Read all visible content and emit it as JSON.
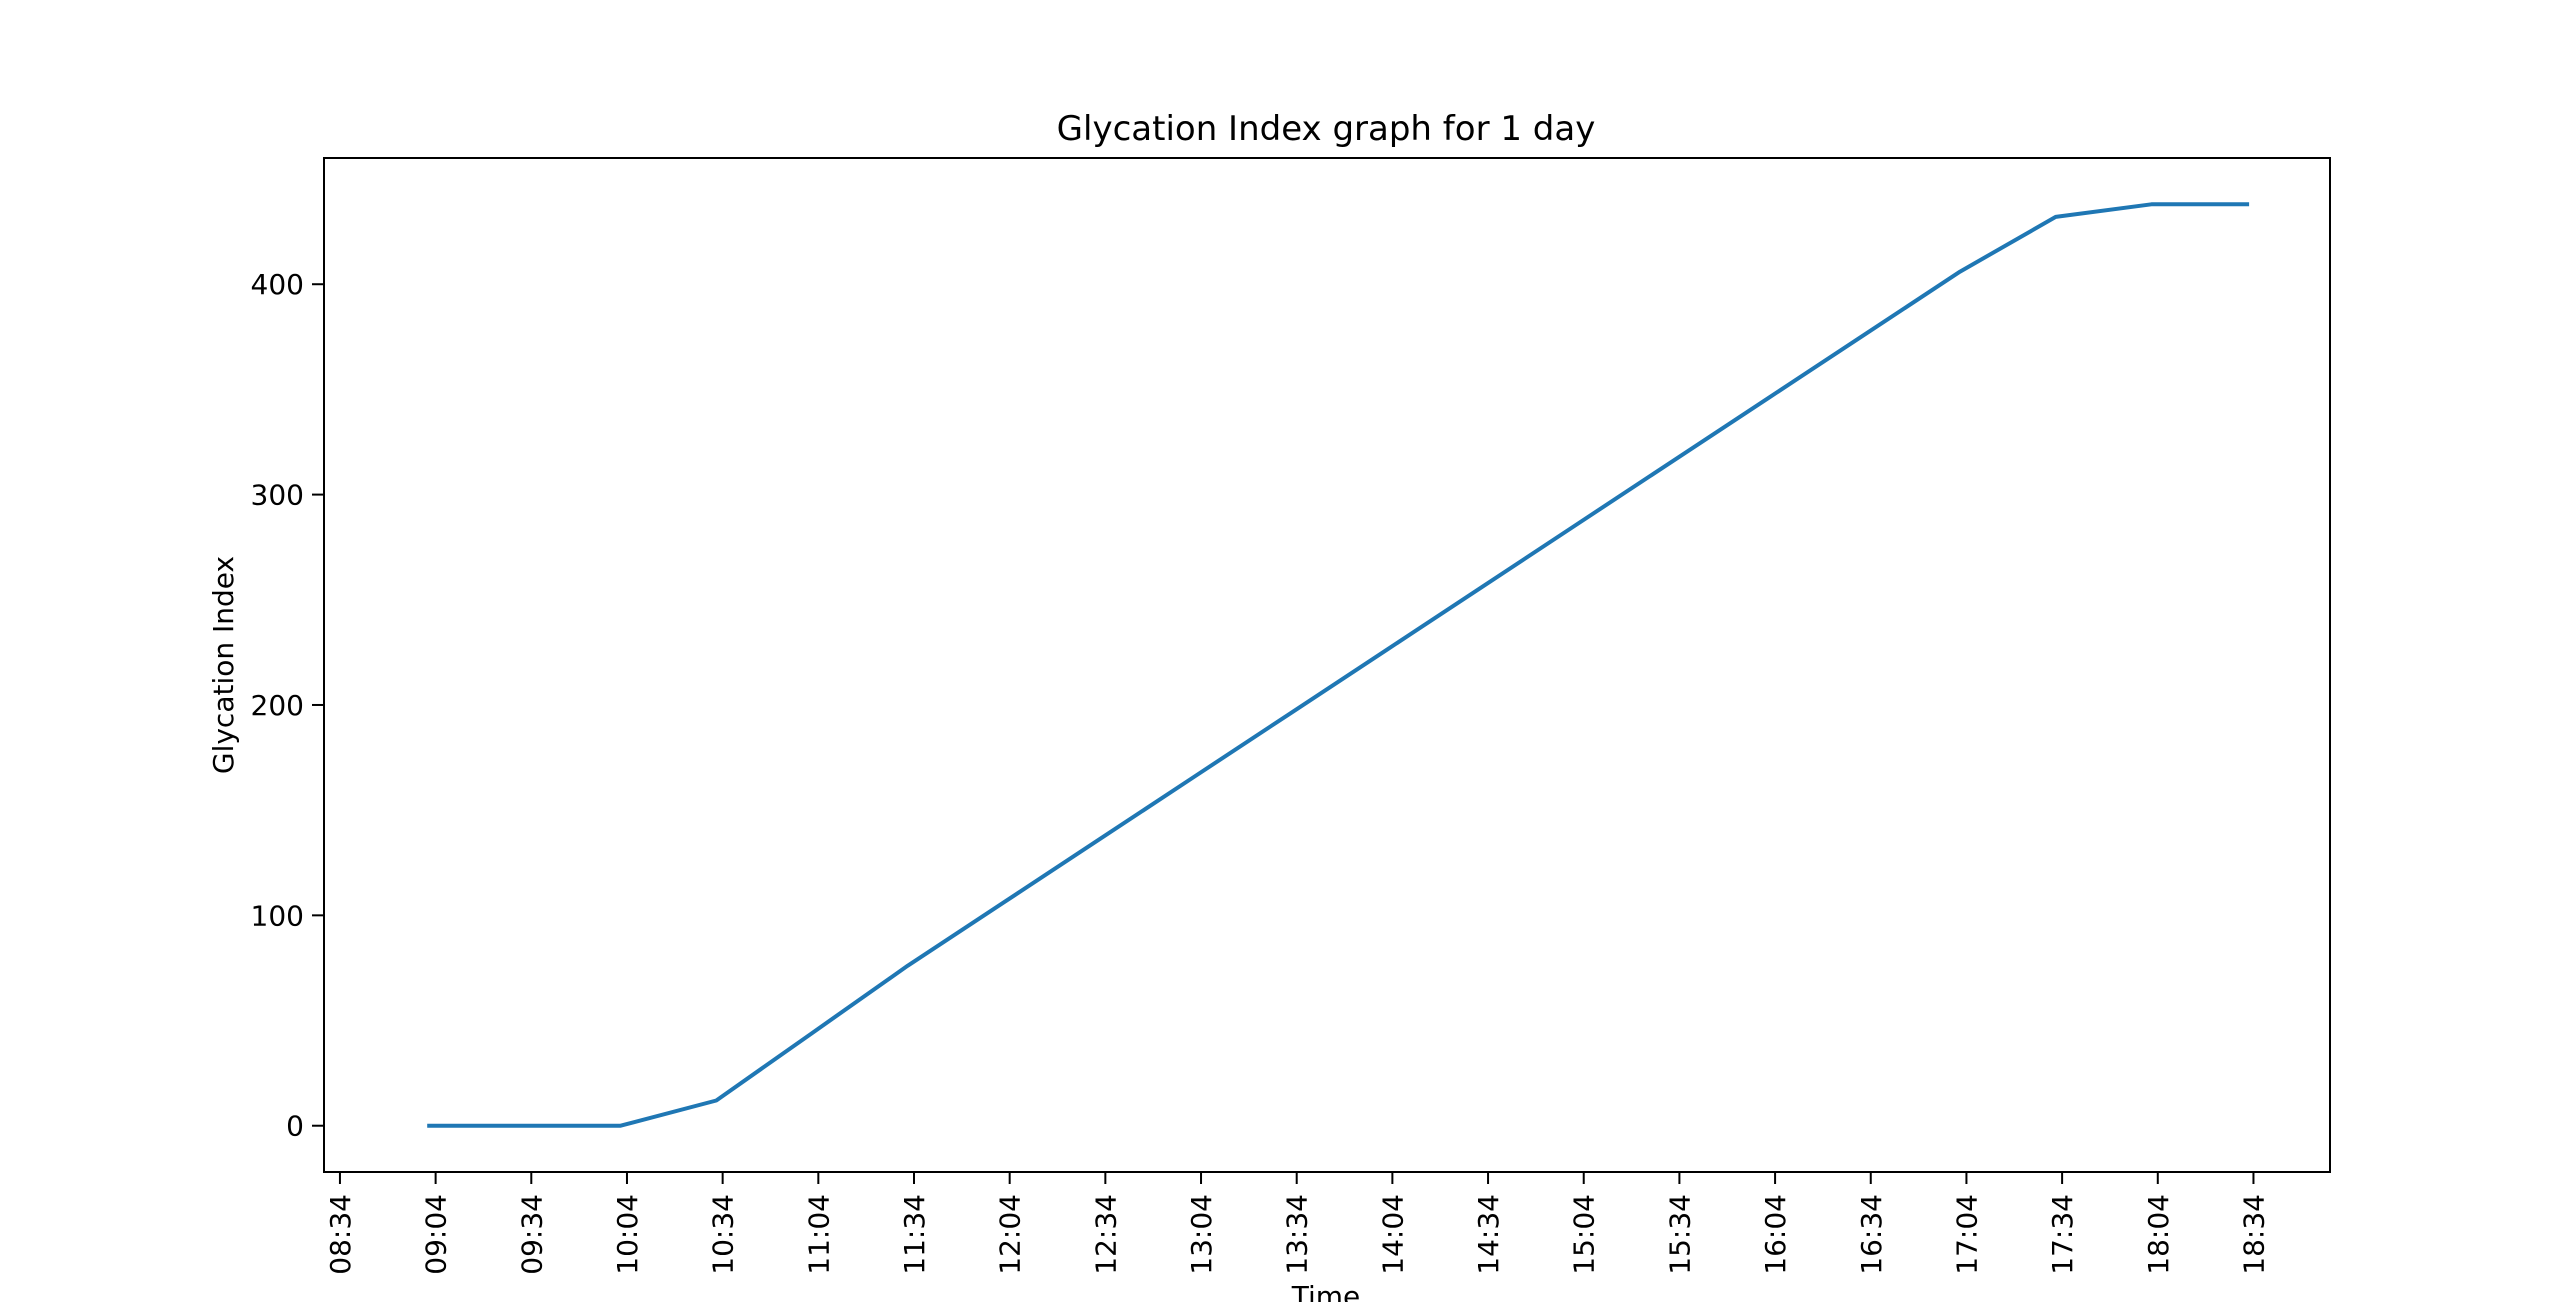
{
  "chart_data": {
    "type": "line",
    "title": "Glycation Index graph for 1 day",
    "xlabel": "Time",
    "ylabel": "Glycation Index",
    "grid": false,
    "legend": null,
    "xlim_minutes": [
      509,
      1138
    ],
    "ylim": [
      -22,
      460
    ],
    "x_ticks": [
      "08:34",
      "09:04",
      "09:34",
      "10:04",
      "10:34",
      "11:04",
      "11:34",
      "12:04",
      "12:34",
      "13:04",
      "13:34",
      "14:04",
      "14:34",
      "15:04",
      "15:34",
      "16:04",
      "16:34",
      "17:04",
      "17:34",
      "18:04",
      "18:34"
    ],
    "y_ticks": [
      0,
      100,
      200,
      300,
      400
    ],
    "series": [
      {
        "name": "Glycation Index",
        "color": "#1f77b4",
        "x": [
          "09:02",
          "09:32",
          "10:02",
          "10:32",
          "11:02",
          "11:32",
          "12:02",
          "12:32",
          "13:02",
          "13:32",
          "14:02",
          "14:32",
          "15:02",
          "15:32",
          "16:02",
          "16:32",
          "17:02",
          "17:32",
          "18:02",
          "18:32"
        ],
        "values": [
          0,
          0,
          0,
          12,
          44,
          76,
          106,
          136,
          166,
          196,
          226,
          256,
          286,
          316,
          346,
          376,
          406,
          432,
          438,
          438
        ]
      }
    ]
  }
}
